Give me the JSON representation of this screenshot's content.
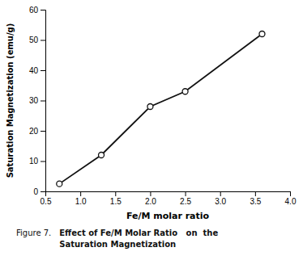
{
  "chart_data": {
    "type": "line",
    "x": [
      0.7,
      1.3,
      2.0,
      2.5,
      3.6
    ],
    "y": [
      2.5,
      12.0,
      28.0,
      33.0,
      52.0
    ],
    "xlim": [
      0.5,
      4.0
    ],
    "ylim": [
      0,
      60
    ],
    "xticks": [
      0.5,
      {
        "value": 1.0,
        "label": "1.0"
      },
      1.5,
      {
        "value": 2.0,
        "label": "2.0"
      },
      2.5,
      {
        "value": 3.0,
        "label": "3.0"
      },
      3.5,
      {
        "value": 4.0,
        "label": "4.0"
      }
    ],
    "yticks": [
      0,
      10,
      20,
      30,
      40,
      50,
      60
    ],
    "xlabel": "Fe/M molar ratio",
    "ylabel": "Saturation Magnetization (emu/g)",
    "annotations": [
      "Figure 7.",
      "Effect of Fe/M Molar Ratio   on  the",
      "Saturation Magnetization"
    ],
    "color": "#111111",
    "marker": "circle",
    "grid": false
  }
}
